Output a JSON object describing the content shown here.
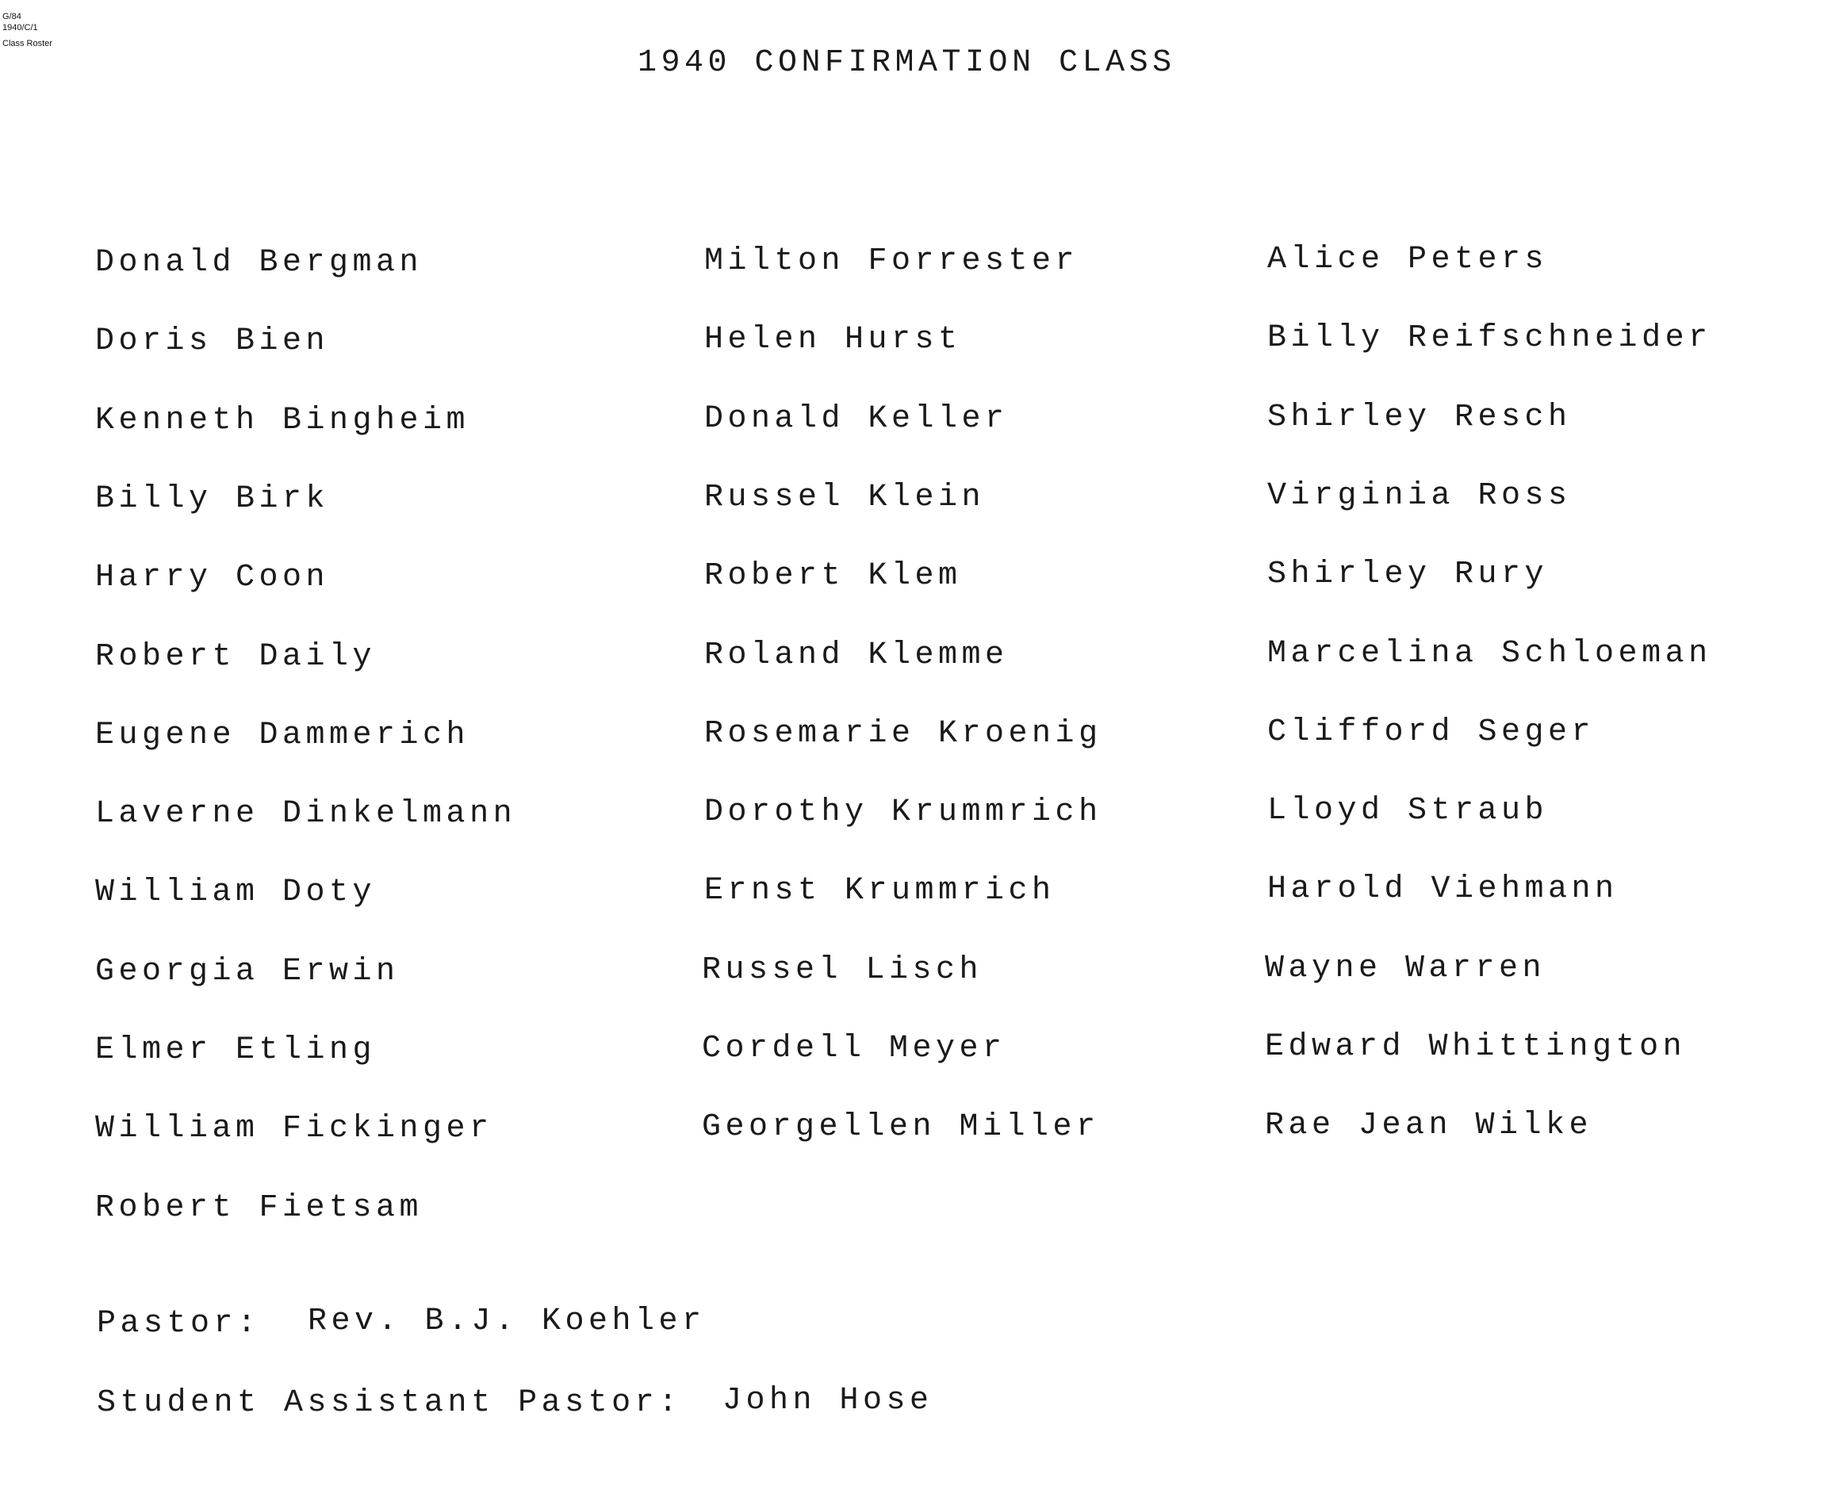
{
  "meta": {
    "line1": "G/84",
    "line2": "1940/C/1",
    "line3": "Class Roster"
  },
  "title": "1940 CONFIRMATION CLASS",
  "columns": [
    [
      "Donald Bergman",
      "Doris Bien",
      "Kenneth Bingheim",
      "Billy Birk",
      "Harry Coon",
      "Robert Daily",
      "Eugene Dammerich",
      "Laverne Dinkelmann",
      "William Doty",
      "Georgia Erwin",
      "Elmer Etling",
      "William Fickinger",
      "Robert Fietsam"
    ],
    [
      "Milton Forrester",
      "Helen Hurst",
      "Donald Keller",
      "Russel Klein",
      "Robert Klem",
      "Roland Klemme",
      "Rosemarie Kroenig",
      "Dorothy Krummrich",
      "Ernst Krummrich",
      "Russel Lisch",
      "Cordell Meyer",
      "Georgellen Miller"
    ],
    [
      "Alice Peters",
      "Billy Reifschneider",
      "Shirley Resch",
      "Virginia Ross",
      "Shirley Rury",
      "Marcelina Schloeman",
      "Clifford Seger",
      "Lloyd Straub",
      "Harold Viehmann",
      "Wayne Warren",
      "Edward Whittington",
      "Rae Jean Wilke"
    ]
  ],
  "pastor": {
    "label": "Pastor:",
    "name": "Rev. B.J. Koehler"
  },
  "student_assistant": {
    "label": "Student Assistant Pastor:",
    "name": "John Hose"
  }
}
